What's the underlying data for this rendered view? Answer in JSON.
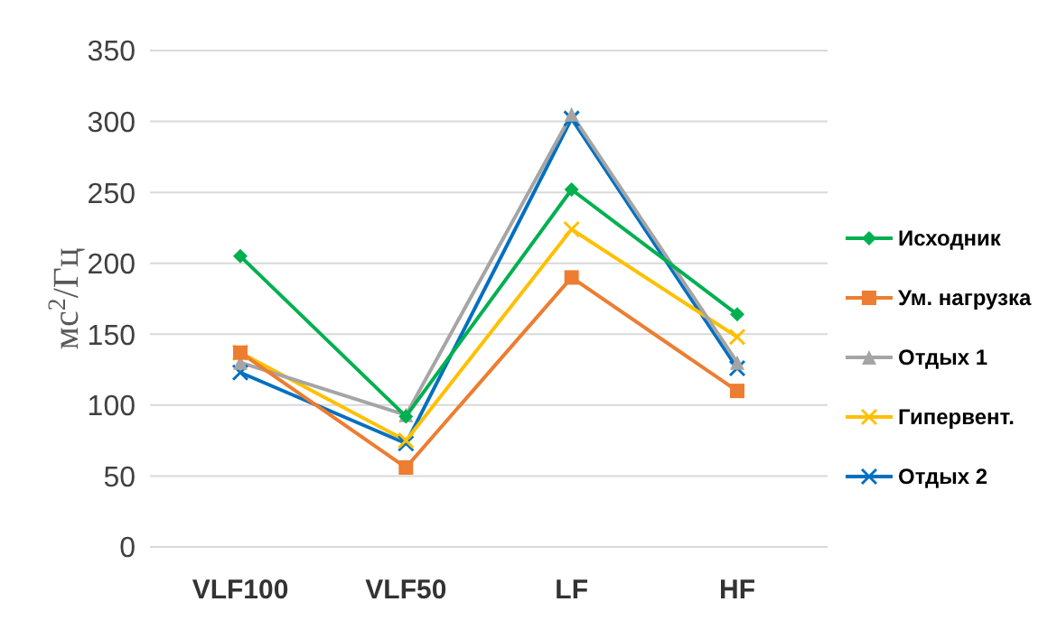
{
  "chart_data": {
    "type": "line",
    "ylabel": "мс$^{2}$/Гц",
    "categories": [
      "VLF100",
      "VLF50",
      "LF",
      "HF"
    ],
    "series": [
      {
        "name": "Исходник",
        "color": "#00b050",
        "marker": "diamond",
        "values": [
          205,
          92,
          252,
          164
        ]
      },
      {
        "name": "Ум. нагрузка",
        "color": "#ed7d31",
        "marker": "square",
        "values": [
          137,
          56,
          190,
          110
        ]
      },
      {
        "name": "Отдых 1",
        "color": "#a5a5a5",
        "marker": "triangle",
        "values": [
          130,
          93,
          305,
          130
        ]
      },
      {
        "name": "Гипервент.",
        "color": "#ffc000",
        "marker": "cross",
        "values": [
          137,
          75,
          224,
          148
        ]
      },
      {
        "name": "Отдых 2",
        "color": "#0070c0",
        "marker": "cross",
        "values": [
          123,
          73,
          302,
          126
        ]
      }
    ],
    "ylim": [
      0,
      350
    ],
    "yticks": [
      0,
      50,
      100,
      150,
      200,
      250,
      300,
      350
    ],
    "grid": "y",
    "legend": "right"
  }
}
